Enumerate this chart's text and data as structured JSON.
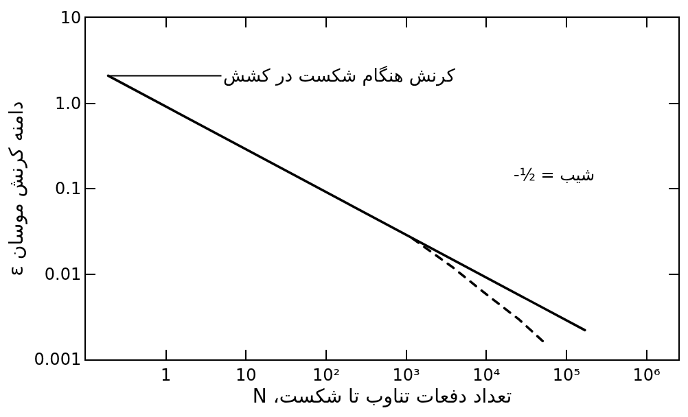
{
  "chart_data": {
    "type": "line",
    "xlabel": "تعداد دفعات تناوب تا شکست، N",
    "ylabel": "دامنه کرنش موسان ε",
    "annotations": [
      {
        "text": "کرنش هنگام شکست در کشش",
        "x": 0.19,
        "y": 2.1
      },
      "شیب = -½"
    ],
    "series": [
      {
        "color": "#000000",
        "line_style": "solid",
        "x": [
          0.19,
          170000
        ],
        "values": [
          2.1,
          0.0022
        ]
      },
      {
        "color": "#000000",
        "line_style": "dashed",
        "x": [
          1200,
          3800,
          9300,
          26000,
          52000
        ],
        "values": [
          0.026,
          0.012,
          0.0061,
          0.0029,
          0.0016
        ]
      }
    ],
    "xlim": [
      0.1,
      2500000
    ],
    "ylim": [
      0.001,
      10
    ],
    "xticks": [
      1,
      10,
      {
        "value": 100,
        "label": "10²"
      },
      {
        "value": 1000,
        "label": "10³"
      },
      {
        "value": 10000,
        "label": "10⁴"
      },
      {
        "value": 100000,
        "label": "10⁵"
      },
      {
        "value": 1000000,
        "label": "10⁶"
      }
    ],
    "yticks": [
      0.001,
      0.01,
      0.1,
      {
        "value": 1,
        "label": "1.0"
      },
      10
    ],
    "log": "xy"
  }
}
